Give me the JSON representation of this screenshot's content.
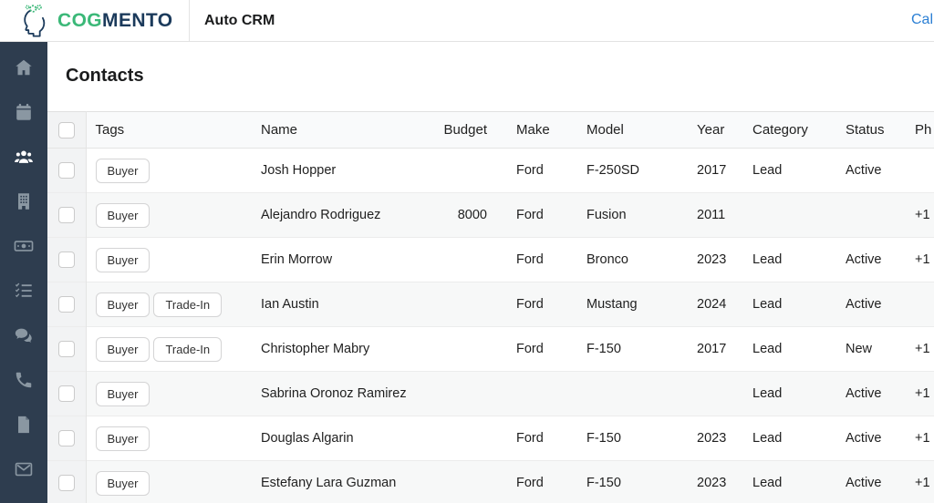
{
  "theme": {
    "sidebar_bg": "#2e3d4f",
    "brand_green": "#3bb878",
    "brand_navy": "#1b3a5b",
    "link_blue": "#2b7fd4",
    "inactive_icon": "#8a97a2",
    "active_icon": "#ffffff"
  },
  "brand": {
    "logo_green": "COG",
    "logo_navy": "MENTO",
    "app_name": "Auto CRM"
  },
  "header": {
    "calendar_link": "Cal"
  },
  "sidebar": {
    "items": [
      {
        "id": "home",
        "icon": "home-icon",
        "active": false
      },
      {
        "id": "calendar",
        "icon": "calendar-icon",
        "active": false
      },
      {
        "id": "contacts",
        "icon": "users-icon",
        "active": true
      },
      {
        "id": "companies",
        "icon": "building-icon",
        "active": false
      },
      {
        "id": "deals",
        "icon": "money-bill-icon",
        "active": false
      },
      {
        "id": "tasks",
        "icon": "task-list-icon",
        "active": false
      },
      {
        "id": "messages",
        "icon": "chat-bubbles-icon",
        "active": false
      },
      {
        "id": "calls",
        "icon": "phone-icon",
        "active": false
      },
      {
        "id": "documents",
        "icon": "document-icon",
        "active": false
      },
      {
        "id": "email",
        "icon": "envelope-icon",
        "active": false
      }
    ]
  },
  "page": {
    "title": "Contacts"
  },
  "table": {
    "columns": [
      {
        "key": "tags",
        "label": "Tags"
      },
      {
        "key": "name",
        "label": "Name"
      },
      {
        "key": "budget",
        "label": "Budget"
      },
      {
        "key": "make",
        "label": "Make"
      },
      {
        "key": "model",
        "label": "Model"
      },
      {
        "key": "year",
        "label": "Year"
      },
      {
        "key": "category",
        "label": "Category"
      },
      {
        "key": "status",
        "label": "Status"
      },
      {
        "key": "phone",
        "label": "Ph"
      }
    ],
    "rows": [
      {
        "tags": [
          "Buyer"
        ],
        "name": "Josh Hopper",
        "budget": "",
        "make": "Ford",
        "model": "F-250SD",
        "year": "2017",
        "category": "Lead",
        "status": "Active",
        "phone": ""
      },
      {
        "tags": [
          "Buyer"
        ],
        "name": "Alejandro Rodriguez",
        "budget": "8000",
        "make": "Ford",
        "model": "Fusion",
        "year": "2011",
        "category": "",
        "status": "",
        "phone": "+1"
      },
      {
        "tags": [
          "Buyer"
        ],
        "name": "Erin Morrow",
        "budget": "",
        "make": "Ford",
        "model": "Bronco",
        "year": "2023",
        "category": "Lead",
        "status": "Active",
        "phone": "+1"
      },
      {
        "tags": [
          "Buyer",
          "Trade-In"
        ],
        "name": "Ian Austin",
        "budget": "",
        "make": "Ford",
        "model": "Mustang",
        "year": "2024",
        "category": "Lead",
        "status": "Active",
        "phone": ""
      },
      {
        "tags": [
          "Buyer",
          "Trade-In"
        ],
        "name": "Christopher Mabry",
        "budget": "",
        "make": "Ford",
        "model": "F-150",
        "year": "2017",
        "category": "Lead",
        "status": "New",
        "phone": "+1"
      },
      {
        "tags": [
          "Buyer"
        ],
        "name": "Sabrina Oronoz Ramirez",
        "budget": "",
        "make": "",
        "model": "",
        "year": "",
        "category": "Lead",
        "status": "Active",
        "phone": "+1"
      },
      {
        "tags": [
          "Buyer"
        ],
        "name": "Douglas Algarin",
        "budget": "",
        "make": "Ford",
        "model": "F-150",
        "year": "2023",
        "category": "Lead",
        "status": "Active",
        "phone": "+1"
      },
      {
        "tags": [
          "Buyer"
        ],
        "name": "Estefany Lara Guzman",
        "budget": "",
        "make": "Ford",
        "model": "F-150",
        "year": "2023",
        "category": "Lead",
        "status": "Active",
        "phone": "+1"
      }
    ]
  }
}
